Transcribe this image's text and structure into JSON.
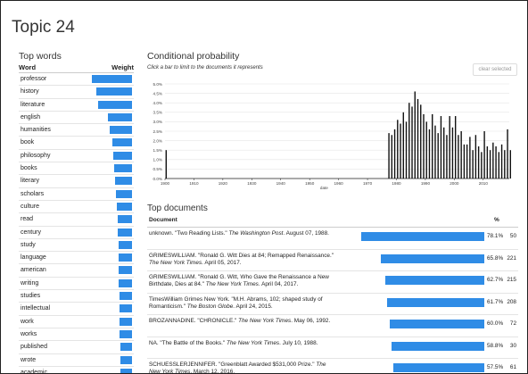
{
  "page": {
    "title": "Topic 24"
  },
  "colors": {
    "accent": "#2f8ce6",
    "bar_dark": "#111111"
  },
  "top_words": {
    "section_title": "Top words",
    "col_word": "Word",
    "col_weight": "Weight",
    "items": [
      {
        "word": "professor",
        "weight": 1.0
      },
      {
        "word": "history",
        "weight": 0.9
      },
      {
        "word": "literature",
        "weight": 0.85
      },
      {
        "word": "english",
        "weight": 0.6
      },
      {
        "word": "humanities",
        "weight": 0.55
      },
      {
        "word": "book",
        "weight": 0.5
      },
      {
        "word": "philosophy",
        "weight": 0.47
      },
      {
        "word": "books",
        "weight": 0.45
      },
      {
        "word": "literary",
        "weight": 0.43
      },
      {
        "word": "scholars",
        "weight": 0.4
      },
      {
        "word": "culture",
        "weight": 0.37
      },
      {
        "word": "read",
        "weight": 0.36
      },
      {
        "word": "century",
        "weight": 0.35
      },
      {
        "word": "study",
        "weight": 0.34
      },
      {
        "word": "language",
        "weight": 0.34
      },
      {
        "word": "american",
        "weight": 0.33
      },
      {
        "word": "writing",
        "weight": 0.33
      },
      {
        "word": "studies",
        "weight": 0.32
      },
      {
        "word": "intellectual",
        "weight": 0.32
      },
      {
        "word": "work",
        "weight": 0.31
      },
      {
        "word": "works",
        "weight": 0.31
      },
      {
        "word": "published",
        "weight": 0.3
      },
      {
        "word": "wrote",
        "weight": 0.3
      },
      {
        "word": "academic",
        "weight": 0.29
      }
    ]
  },
  "conditional_probability": {
    "section_title": "Conditional probability",
    "subtitle": "Click a bar to limit to the documents it represents",
    "clear_button": "clear selected"
  },
  "chart_data": {
    "type": "bar",
    "xlabel": "date",
    "ylabel": "",
    "xlim": [
      1900,
      2019
    ],
    "ylim": [
      0,
      5.0
    ],
    "x_ticks": [
      "1900",
      "1910",
      "1920",
      "1930",
      "1940",
      "1950",
      "1960",
      "1970",
      "1980",
      "1990",
      "2000",
      "2010"
    ],
    "y_ticks": [
      "0.0%",
      "0.5%",
      "1.0%",
      "1.5%",
      "2.0%",
      "2.5%",
      "3.0%",
      "3.5%",
      "4.0%",
      "4.5%",
      "5.0%"
    ],
    "x": [
      1900,
      1977,
      1978,
      1979,
      1980,
      1981,
      1982,
      1983,
      1984,
      1985,
      1986,
      1987,
      1988,
      1989,
      1990,
      1991,
      1992,
      1993,
      1994,
      1995,
      1996,
      1997,
      1998,
      1999,
      2000,
      2001,
      2002,
      2003,
      2004,
      2005,
      2006,
      2007,
      2008,
      2009,
      2010,
      2011,
      2012,
      2013,
      2014,
      2015,
      2016,
      2017,
      2018,
      2019
    ],
    "values": [
      1.5,
      2.4,
      2.3,
      2.6,
      3.1,
      2.9,
      3.5,
      3.0,
      4.0,
      3.8,
      4.6,
      4.2,
      3.9,
      3.4,
      3.0,
      2.6,
      3.4,
      2.8,
      2.4,
      3.3,
      2.7,
      2.3,
      3.3,
      2.7,
      3.3,
      2.3,
      2.5,
      1.8,
      1.8,
      2.2,
      1.5,
      2.3,
      1.7,
      1.4,
      2.5,
      1.7,
      1.5,
      1.9,
      1.7,
      1.4,
      1.8,
      1.5,
      2.6,
      1.5
    ]
  },
  "top_documents": {
    "section_title": "Top documents",
    "col_document": "Document",
    "col_pct": "%",
    "items": [
      {
        "cite_pre": "unknown. \"Two Reading Lists.\" ",
        "source": "The Washington Post",
        "cite_post": ". August 07, 1988.",
        "pct": 78.1,
        "pct_label": "78.1%",
        "count": "50"
      },
      {
        "cite_pre": "GRIMESWILLIAM. \"Ronald G. Witt Dies at 84; Remapped Renaissance.\" ",
        "source": "The New York Times",
        "cite_post": ". April 05, 2017.",
        "pct": 65.8,
        "pct_label": "65.8%",
        "count": "221"
      },
      {
        "cite_pre": "GRIMESWILLIAM. \"Ronald G. Witt, Who Gave the Renaissance a New Birthdate, Dies at 84.\" ",
        "source": "The New York Times",
        "cite_post": ". April 04, 2017.",
        "pct": 62.7,
        "pct_label": "62.7%",
        "count": "215"
      },
      {
        "cite_pre": "TimesWilliam Grimes New York. \"M.H. Abrams, 102; shaped study of Romanticism.\" ",
        "source": "The Boston Globe",
        "cite_post": ". April 24, 2015.",
        "pct": 61.7,
        "pct_label": "61.7%",
        "count": "208"
      },
      {
        "cite_pre": "BROZANNADINE. \"CHRONICLE.\" ",
        "source": "The New York Times",
        "cite_post": ". May 06, 1992.",
        "pct": 60.0,
        "pct_label": "60.0%",
        "count": "72"
      },
      {
        "cite_pre": "NA. \"The Battle of the Books.\" ",
        "source": "The New York Times",
        "cite_post": ". July 10, 1988.",
        "pct": 58.8,
        "pct_label": "58.8%",
        "count": "30"
      },
      {
        "cite_pre": "SCHUESSLERJENNIFER. \"Greenblatt Awarded $531,000 Prize.\" ",
        "source": "The New York Times",
        "cite_post": ". March 12, 2016.",
        "pct": 57.5,
        "pct_label": "57.5%",
        "count": "61"
      }
    ]
  }
}
